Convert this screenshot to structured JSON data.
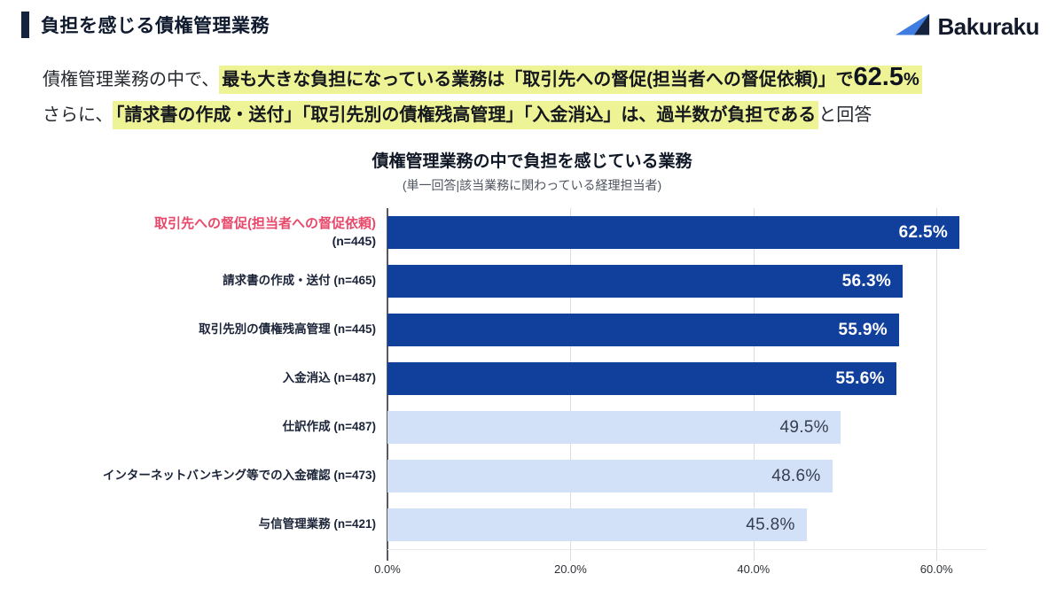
{
  "header": {
    "title": "負担を感じる債権管理業務",
    "brand": "Bakuraku"
  },
  "intro": {
    "line1_prefix": "債権管理業務の中で、",
    "line1_highlight": "最も大きな負担になっている業務は「取引先への督促(担当者への督促依頼)」で",
    "line1_value": "62.5",
    "line1_unit": "%",
    "line2_prefix": "さらに、",
    "line2_highlight": "「請求書の作成・送付」「取引先別の債権残高管理」「入金消込」は、過半数が負担である",
    "line2_suffix": "と回答"
  },
  "chart_data": {
    "type": "bar",
    "orientation": "horizontal",
    "title": "債権管理業務の中で負担を感じている業務",
    "subtitle": "(単一回答|該当業務に関わっている経理担当者)",
    "xlabel": "",
    "ylabel": "",
    "xlim": [
      0,
      65.5
    ],
    "grid": true,
    "x_ticks": [
      {
        "value": 0,
        "label": "0.0%"
      },
      {
        "value": 20,
        "label": "20.0%"
      },
      {
        "value": 40,
        "label": "40.0%"
      },
      {
        "value": 60,
        "label": "60.0%"
      }
    ],
    "items": [
      {
        "label": "取引先への督促(担当者への督促依頼)",
        "n": "(n=445)",
        "value": 62.5,
        "display": "62.5%",
        "emphasis": true,
        "label_highlighted": true,
        "two_line": true
      },
      {
        "label": "請求書の作成・送付",
        "n": "(n=465)",
        "value": 56.3,
        "display": "56.3%",
        "emphasis": true,
        "label_highlighted": false,
        "two_line": false
      },
      {
        "label": "取引先別の債権残高管理",
        "n": "(n=445)",
        "value": 55.9,
        "display": "55.9%",
        "emphasis": true,
        "label_highlighted": false,
        "two_line": false
      },
      {
        "label": "入金消込",
        "n": "(n=487)",
        "value": 55.6,
        "display": "55.6%",
        "emphasis": true,
        "label_highlighted": false,
        "two_line": false
      },
      {
        "label": "仕訳作成",
        "n": "(n=487)",
        "value": 49.5,
        "display": "49.5%",
        "emphasis": false,
        "label_highlighted": false,
        "two_line": false
      },
      {
        "label": "インターネットバンキング等での入金確認",
        "n": "(n=473)",
        "value": 48.6,
        "display": "48.6%",
        "emphasis": false,
        "label_highlighted": false,
        "two_line": false
      },
      {
        "label": "与信管理業務",
        "n": "(n=421)",
        "value": 45.8,
        "display": "45.8%",
        "emphasis": false,
        "label_highlighted": false,
        "two_line": false
      }
    ],
    "colors": {
      "emphasis_bar": "#113f9c",
      "normal_bar": "#d3e1f8",
      "highlight": "#eef396",
      "emphasized_label": "#e8486a",
      "accent_navy": "#16233f"
    },
    "legend": null
  }
}
